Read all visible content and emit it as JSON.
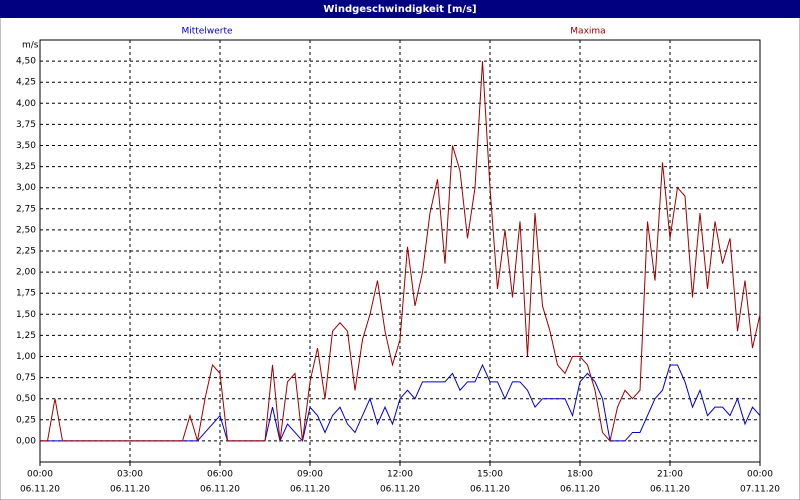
{
  "chart_data": {
    "type": "line",
    "title": "Windgeschwindigkeit [m/s]",
    "y_label": "m/s",
    "x": [
      0,
      0.25,
      0.5,
      0.75,
      1,
      1.25,
      1.5,
      1.75,
      2,
      2.25,
      2.5,
      2.75,
      3,
      3.25,
      3.5,
      3.75,
      4,
      4.25,
      4.5,
      4.75,
      5,
      5.25,
      5.5,
      5.75,
      6,
      6.25,
      6.5,
      6.75,
      7,
      7.25,
      7.5,
      7.75,
      8,
      8.25,
      8.5,
      8.75,
      9,
      9.25,
      9.5,
      9.75,
      10,
      10.25,
      10.5,
      10.75,
      11,
      11.25,
      11.5,
      11.75,
      12,
      12.25,
      12.5,
      12.75,
      13,
      13.25,
      13.5,
      13.75,
      14,
      14.25,
      14.5,
      14.75,
      15,
      15.25,
      15.5,
      15.75,
      16,
      16.25,
      16.5,
      16.75,
      17,
      17.25,
      17.5,
      17.75,
      18,
      18.25,
      18.5,
      18.75,
      19,
      19.25,
      19.5,
      19.75,
      20,
      20.25,
      20.5,
      20.75,
      21,
      21.25,
      21.5,
      21.75,
      22,
      22.25,
      22.5,
      22.75,
      23,
      23.25,
      23.5,
      23.75,
      24
    ],
    "series": [
      {
        "name": "Mittelwerte",
        "color": "#0000cc",
        "values": [
          0,
          0,
          0,
          0,
          0,
          0,
          0,
          0,
          0,
          0,
          0,
          0,
          0,
          0,
          0,
          0,
          0,
          0,
          0,
          0,
          0,
          0,
          0.1,
          0.2,
          0.3,
          0,
          0,
          0,
          0,
          0,
          0,
          0.4,
          0,
          0.2,
          0.1,
          0,
          0.4,
          0.3,
          0.1,
          0.3,
          0.4,
          0.2,
          0.1,
          0.3,
          0.5,
          0.2,
          0.4,
          0.2,
          0.5,
          0.6,
          0.5,
          0.7,
          0.7,
          0.7,
          0.7,
          0.8,
          0.6,
          0.7,
          0.7,
          0.9,
          0.7,
          0.7,
          0.5,
          0.7,
          0.7,
          0.6,
          0.4,
          0.5,
          0.5,
          0.5,
          0.5,
          0.3,
          0.7,
          0.8,
          0.7,
          0.5,
          0,
          0,
          0,
          0.1,
          0.1,
          0.3,
          0.5,
          0.6,
          0.9,
          0.9,
          0.7,
          0.4,
          0.6,
          0.3,
          0.4,
          0.4,
          0.3,
          0.5,
          0.2,
          0.4,
          0.3
        ]
      },
      {
        "name": "Maxima",
        "color": "#a00000",
        "values": [
          0,
          0,
          0.5,
          0,
          0,
          0,
          0,
          0,
          0,
          0,
          0,
          0,
          0,
          0,
          0,
          0,
          0,
          0,
          0,
          0,
          0.3,
          0,
          0.5,
          0.9,
          0.8,
          0,
          0,
          0,
          0,
          0,
          0,
          0.9,
          0,
          0.7,
          0.8,
          0,
          0.7,
          1.1,
          0.5,
          1.3,
          1.4,
          1.3,
          0.6,
          1.2,
          1.5,
          1.9,
          1.3,
          0.9,
          1.2,
          2.3,
          1.6,
          2.0,
          2.7,
          3.1,
          2.1,
          3.5,
          3.2,
          2.4,
          3.0,
          4.5,
          3.0,
          1.8,
          2.5,
          1.7,
          2.6,
          1.0,
          2.7,
          1.6,
          1.3,
          0.9,
          0.8,
          1.0,
          1.0,
          0.9,
          0.6,
          0.1,
          0,
          0.4,
          0.6,
          0.5,
          0.6,
          2.6,
          1.9,
          3.3,
          2.4,
          3.0,
          2.9,
          1.7,
          2.7,
          1.8,
          2.6,
          2.1,
          2.4,
          1.3,
          1.9,
          1.1,
          1.5
        ]
      }
    ],
    "xlim": [
      0,
      24
    ],
    "xticks": [
      {
        "value": 0,
        "label": "00:00"
      },
      {
        "value": 3,
        "label": "03:00"
      },
      {
        "value": 6,
        "label": "06:00"
      },
      {
        "value": 9,
        "label": "09:00"
      },
      {
        "value": 12,
        "label": "12:00"
      },
      {
        "value": 15,
        "label": "15:00"
      },
      {
        "value": 18,
        "label": "18:00"
      },
      {
        "value": 21,
        "label": "21:00"
      },
      {
        "value": 24,
        "label": "00:00"
      }
    ],
    "xtick_dates": [
      "06.11.20",
      "06.11.20",
      "06.11.20",
      "06.11.20",
      "06.11.20",
      "06.11.20",
      "06.11.20",
      "06.11.20",
      "07.11.20"
    ],
    "ylim": [
      -0.25,
      4.75
    ],
    "yticks": [
      {
        "value": 0,
        "label": "0,00"
      },
      {
        "value": 0.25,
        "label": "0,25"
      },
      {
        "value": 0.5,
        "label": "0,50"
      },
      {
        "value": 0.75,
        "label": "0,75"
      },
      {
        "value": 1,
        "label": "1,00"
      },
      {
        "value": 1.25,
        "label": "1,25"
      },
      {
        "value": 1.5,
        "label": "1,50"
      },
      {
        "value": 1.75,
        "label": "1,75"
      },
      {
        "value": 2,
        "label": "2,00"
      },
      {
        "value": 2.25,
        "label": "2,25"
      },
      {
        "value": 2.5,
        "label": "2,50"
      },
      {
        "value": 2.75,
        "label": "2,75"
      },
      {
        "value": 3,
        "label": "3,00"
      },
      {
        "value": 3.25,
        "label": "3,25"
      },
      {
        "value": 3.5,
        "label": "3,50"
      },
      {
        "value": 3.75,
        "label": "3,75"
      },
      {
        "value": 4,
        "label": "4,00"
      },
      {
        "value": 4.25,
        "label": "4,25"
      },
      {
        "value": 4.5,
        "label": "4,50"
      }
    ],
    "grid": true
  }
}
